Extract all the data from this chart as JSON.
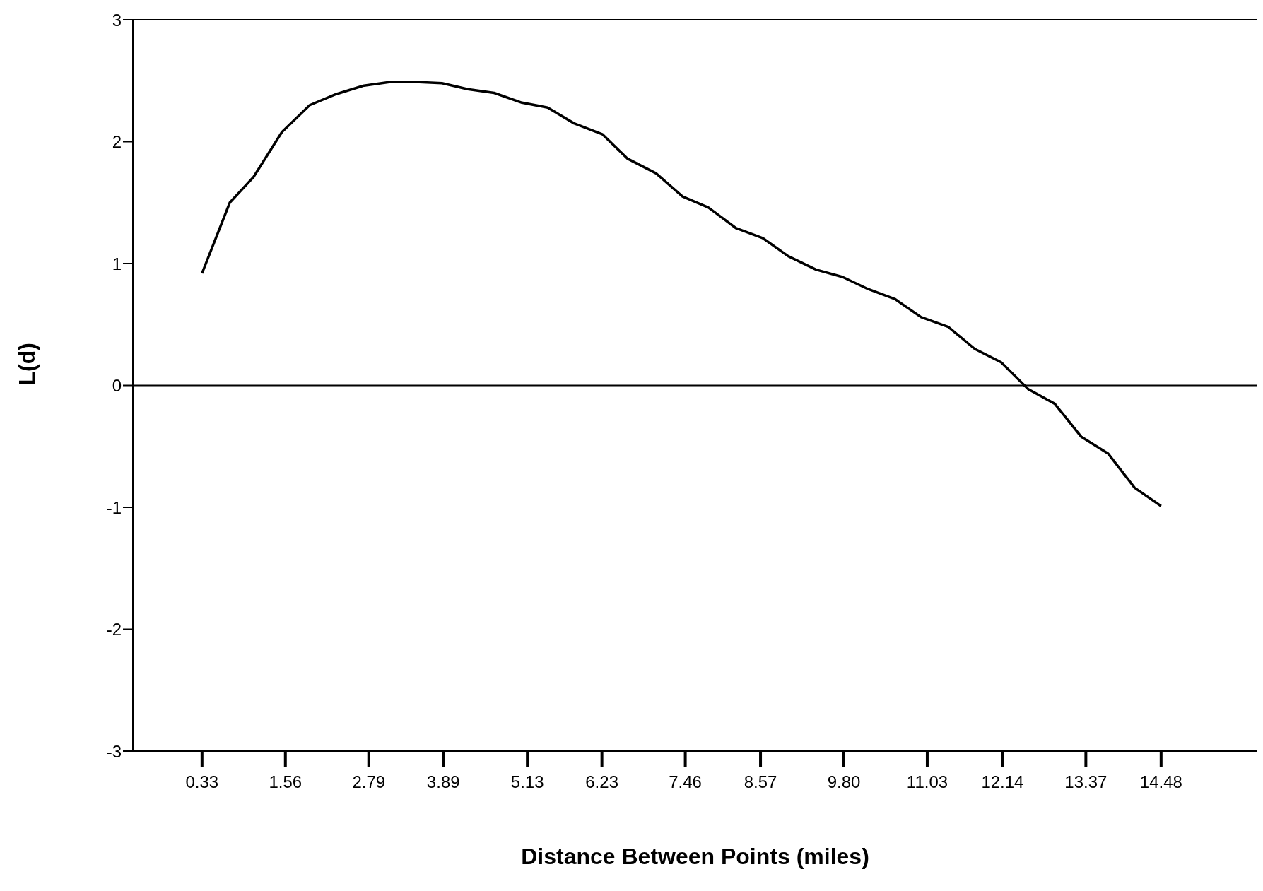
{
  "chart_data": {
    "type": "line",
    "xlabel": "Distance Between Points (miles)",
    "ylabel": "L(d)",
    "x": [
      0.33,
      0.74,
      1.09,
      1.51,
      1.92,
      2.31,
      2.72,
      3.11,
      3.48,
      3.87,
      4.25,
      4.64,
      5.05,
      5.43,
      5.82,
      6.24,
      6.61,
      7.03,
      7.42,
      7.8,
      8.21,
      8.6,
      8.98,
      9.39,
      9.78,
      10.16,
      10.55,
      10.94,
      11.34,
      11.73,
      12.12,
      12.52,
      12.91,
      13.3,
      13.7,
      14.09,
      14.48
    ],
    "series": [
      {
        "color": "#000000",
        "values": [
          0.92,
          1.5,
          1.71,
          2.08,
          2.3,
          2.39,
          2.46,
          2.49,
          2.49,
          2.48,
          2.43,
          2.4,
          2.32,
          2.28,
          2.15,
          2.06,
          1.86,
          1.74,
          1.55,
          1.46,
          1.29,
          1.21,
          1.06,
          0.95,
          0.89,
          0.79,
          0.71,
          0.56,
          0.48,
          0.3,
          0.19,
          -0.03,
          -0.15,
          -0.42,
          -0.56,
          -0.84,
          -0.99
        ]
      }
    ],
    "xlim": [
      -0.69,
      15.9
    ],
    "ylim": [
      -3,
      3
    ],
    "xticks": [
      0.33,
      1.56,
      2.79,
      3.89,
      5.13,
      6.23,
      7.46,
      8.57,
      {
        "value": 9.8,
        "label": "9.80"
      },
      11.03,
      12.14,
      13.37,
      14.48
    ],
    "yticks": [
      -3,
      -2,
      -1,
      0,
      1,
      2,
      3
    ],
    "ref_lines": [
      {
        "axis": "y",
        "value": 0,
        "color": "#000000"
      }
    ],
    "grid": false,
    "legend": false,
    "marker": "none",
    "line_style": "solid"
  }
}
